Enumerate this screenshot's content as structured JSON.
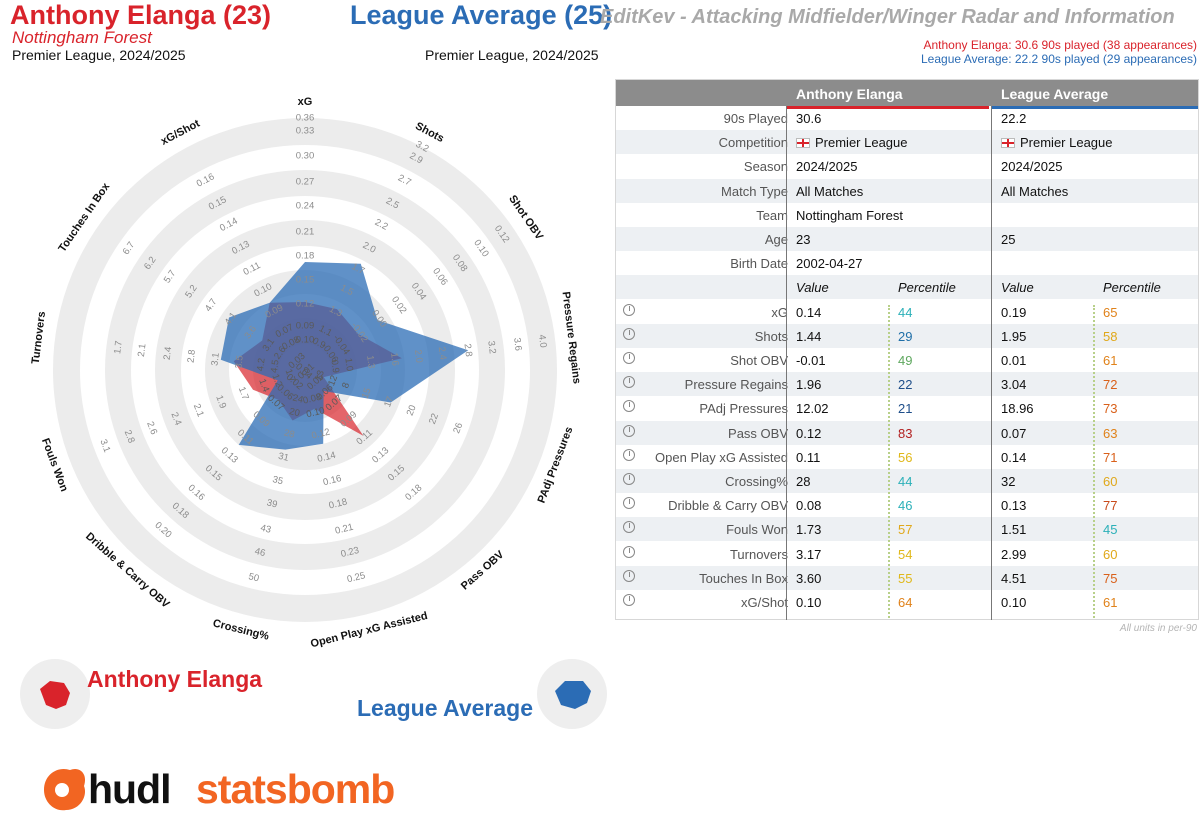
{
  "header": {
    "player_title": "Anthony Elanga (23)",
    "player_team": "Nottingham Forest",
    "player_competition": "Premier League, 2024/2025",
    "league_title": "League Average (25)",
    "league_competition": "Premier League, 2024/2025",
    "report_title": "EditKev - Attacking Midfielder/Winger Radar and Information",
    "player_played": "Anthony Elanga: 30.6 90s played (38 appearances)",
    "league_played": "League Average: 22.2 90s played (29 appearances)"
  },
  "colors": {
    "player": "#d9232b",
    "league": "#2b6cb5",
    "ring": "#ececec",
    "table_header": "#8c8c8c"
  },
  "chart_data": {
    "type": "radar",
    "metrics": [
      {
        "name": "xG",
        "ticks": [
          "0.12",
          "0.15",
          "0.18",
          "0.21",
          "0.24",
          "0.27",
          "0.30",
          "0.33",
          "0.36"
        ],
        "player": 0.14,
        "league": 0.19
      },
      {
        "name": "Shots",
        "ticks": [
          "1.3",
          "1.5",
          "1.7",
          "2.0",
          "2.2",
          "2.5",
          "2.7",
          "2.9",
          "3.2"
        ],
        "player": 1.44,
        "league": 1.95
      },
      {
        "name": "Shot OBV",
        "ticks": [
          "-0.02",
          "0.00",
          "0.02",
          "0.04",
          "0.06",
          "0.08",
          "0.10",
          "0.12"
        ],
        "player": -0.01,
        "league": 0.01
      },
      {
        "name": "Pressure Regains",
        "ticks": [
          "1.3",
          "1.6",
          "2.0",
          "2.4",
          "2.8",
          "3.2",
          "3.6",
          "4.0"
        ],
        "player": 1.96,
        "league": 3.04
      },
      {
        "name": "PAdj Pressures",
        "ticks": [
          "15",
          "17",
          "20",
          "22",
          "26"
        ],
        "player": 12.02,
        "league": 18.96
      },
      {
        "name": "Pass OBV",
        "ticks": [
          "0.09",
          "0.11",
          "0.13",
          "0.15",
          "0.18"
        ],
        "player": 0.12,
        "league": 0.07
      },
      {
        "name": "Open Play xG Assisted",
        "ticks": [
          "0.12",
          "0.14",
          "0.16",
          "0.18",
          "0.21",
          "0.23",
          "0.25"
        ],
        "player": 0.11,
        "league": 0.14
      },
      {
        "name": "Crossing%",
        "ticks": [
          "28",
          "31",
          "35",
          "39",
          "43",
          "46",
          "50"
        ],
        "player": 28,
        "league": 32
      },
      {
        "name": "Dribble & Carry OBV",
        "ticks": [
          "0.09",
          "0.11",
          "0.13",
          "0.15",
          "0.16",
          "0.18",
          "0.20"
        ],
        "player": 0.08,
        "league": 0.13
      },
      {
        "name": "Fouls Won",
        "ticks": [
          "1.7",
          "1.9",
          "2.1",
          "2.4",
          "2.6",
          "2.8",
          "3.1"
        ],
        "player": 1.73,
        "league": 1.51
      },
      {
        "name": "Turnovers",
        "ticks": [
          "3.5",
          "3.1",
          "2.8",
          "2.4",
          "2.1",
          "1.7"
        ],
        "player": 3.17,
        "league": 2.99
      },
      {
        "name": "Touches In Box",
        "ticks": [
          "3.6",
          "4.1",
          "4.7",
          "5.2",
          "5.7",
          "6.2",
          "6.7"
        ],
        "player": 3.6,
        "league": 4.51
      },
      {
        "name": "xG/Shot",
        "ticks": [
          "0.09",
          "0.10",
          "0.11",
          "0.13",
          "0.14",
          "0.15",
          "0.16"
        ],
        "player": 0.1,
        "league": 0.1
      }
    ],
    "inner_ticks": [
      [
        "0.09",
        "0.10"
      ],
      [
        "1.1",
        "0.9"
      ],
      [
        "-0.04",
        "-0.06"
      ],
      [
        "1.0",
        "0.9"
      ],
      [
        "8",
        "12",
        "13"
      ],
      [
        "0.07",
        "0.06",
        "0.05",
        "0.01",
        "0.03"
      ],
      [
        "0.10",
        "0.08"
      ],
      [
        "20",
        "24"
      ],
      [
        "0.07",
        "0.06",
        "0.02",
        "0.04"
      ],
      [
        "1.4",
        "1.2",
        "1.7"
      ],
      [
        "4.2",
        "4.5"
      ],
      [
        "3.1",
        "2.6"
      ],
      [
        "0.07",
        "0.08"
      ]
    ]
  },
  "table": {
    "col_player": "Anthony Elanga",
    "col_league": "League Average",
    "info_rows": [
      {
        "label": "90s Played",
        "player": "30.6",
        "league": "22.2"
      },
      {
        "label": "Competition",
        "player": "Premier League",
        "league": "Premier League",
        "flag": true
      },
      {
        "label": "Season",
        "player": "2024/2025",
        "league": "2024/2025"
      },
      {
        "label": "Match Type",
        "player": "All Matches",
        "league": "All Matches"
      },
      {
        "label": "Team",
        "player": "Nottingham Forest",
        "league": ""
      },
      {
        "label": "Age",
        "player": "23",
        "league": "25"
      },
      {
        "label": "Birth Date",
        "player": "2002-04-27",
        "league": ""
      }
    ],
    "subheader": {
      "value": "Value",
      "percentile": "Percentile"
    },
    "metric_rows": [
      {
        "label": "xG",
        "pv": "0.14",
        "pp": "44",
        "ppc": "#2bb0b8",
        "lv": "0.19",
        "lp": "65",
        "lpc": "#e0821a"
      },
      {
        "label": "Shots",
        "pv": "1.44",
        "pp": "29",
        "ppc": "#1f6fa8",
        "lv": "1.95",
        "lp": "58",
        "lpc": "#e0a81a"
      },
      {
        "label": "Shot OBV",
        "pv": "-0.01",
        "pp": "49",
        "ppc": "#5fa85f",
        "lv": "0.01",
        "lp": "61",
        "lpc": "#e0821a"
      },
      {
        "label": "Pressure Regains",
        "pv": "1.96",
        "pp": "22",
        "ppc": "#1f4f8a",
        "lv": "3.04",
        "lp": "72",
        "lpc": "#d9601a"
      },
      {
        "label": "PAdj Pressures",
        "pv": "12.02",
        "pp": "21",
        "ppc": "#1f4f8a",
        "lv": "18.96",
        "lp": "73",
        "lpc": "#d9601a"
      },
      {
        "label": "Pass OBV",
        "pv": "0.12",
        "pp": "83",
        "ppc": "#b21f1f",
        "lv": "0.07",
        "lp": "63",
        "lpc": "#e0821a"
      },
      {
        "label": "Open Play xG Assisted",
        "pv": "0.11",
        "pp": "56",
        "ppc": "#e0b81a",
        "lv": "0.14",
        "lp": "71",
        "lpc": "#d9601a"
      },
      {
        "label": "Crossing%",
        "pv": "28",
        "pp": "44",
        "ppc": "#2bb0b8",
        "lv": "32",
        "lp": "60",
        "lpc": "#e0a81a"
      },
      {
        "label": "Dribble & Carry OBV",
        "pv": "0.08",
        "pp": "46",
        "ppc": "#2bb0b8",
        "lv": "0.13",
        "lp": "77",
        "lpc": "#c84a1a"
      },
      {
        "label": "Fouls Won",
        "pv": "1.73",
        "pp": "57",
        "ppc": "#e0a81a",
        "lv": "1.51",
        "lp": "45",
        "lpc": "#2bb0b8"
      },
      {
        "label": "Turnovers",
        "pv": "3.17",
        "pp": "54",
        "ppc": "#e0b81a",
        "lv": "2.99",
        "lp": "60",
        "lpc": "#e0a81a"
      },
      {
        "label": "Touches In Box",
        "pv": "3.60",
        "pp": "55",
        "ppc": "#e0b81a",
        "lv": "4.51",
        "lp": "75",
        "lpc": "#d9601a"
      },
      {
        "label": "xG/Shot",
        "pv": "0.10",
        "pp": "64",
        "ppc": "#e0821a",
        "lv": "0.10",
        "lp": "61",
        "lpc": "#e0821a"
      }
    ],
    "units_note": "All units in per-90"
  },
  "legend": {
    "player": "Anthony Elanga",
    "league": "League Average"
  },
  "brand": {
    "hudl": "hudl",
    "statsbomb": "statsbomb"
  }
}
